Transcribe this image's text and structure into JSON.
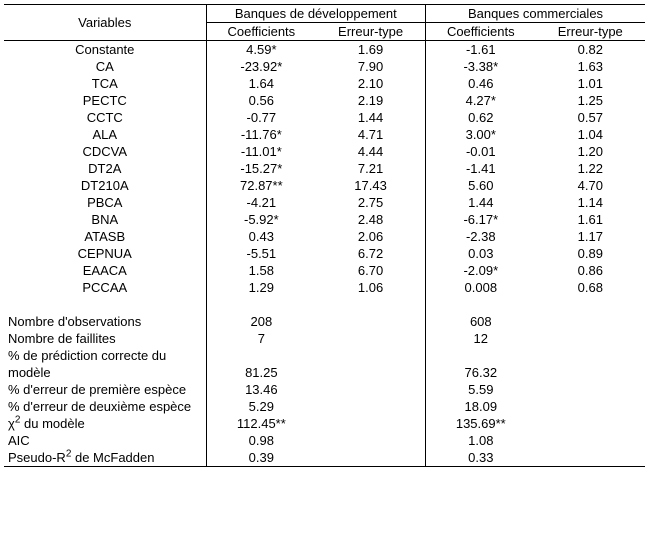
{
  "headers": {
    "variables": "Variables",
    "group_dev": "Banques de développement",
    "group_com": "Banques commerciales",
    "coefficients": "Coefficients",
    "erreur_type": "Erreur-type"
  },
  "rows": [
    {
      "label": "Constante",
      "dev_coef": "4.59*",
      "dev_err": "1.69",
      "com_coef": "-1.61",
      "com_err": "0.82"
    },
    {
      "label": "CA",
      "dev_coef": "-23.92*",
      "dev_err": "7.90",
      "com_coef": "-3.38*",
      "com_err": "1.63"
    },
    {
      "label": "TCA",
      "dev_coef": "1.64",
      "dev_err": "2.10",
      "com_coef": "0.46",
      "com_err": "1.01"
    },
    {
      "label": "PECTC",
      "dev_coef": "0.56",
      "dev_err": "2.19",
      "com_coef": "4.27*",
      "com_err": "1.25"
    },
    {
      "label": "CCTC",
      "dev_coef": "-0.77",
      "dev_err": "1.44",
      "com_coef": "0.62",
      "com_err": "0.57"
    },
    {
      "label": "ALA",
      "dev_coef": "-11.76*",
      "dev_err": "4.71",
      "com_coef": "3.00*",
      "com_err": "1.04"
    },
    {
      "label": "CDCVA",
      "dev_coef": "-11.01*",
      "dev_err": "4.44",
      "com_coef": "-0.01",
      "com_err": "1.20"
    },
    {
      "label": "DT2A",
      "dev_coef": "-15.27*",
      "dev_err": "7.21",
      "com_coef": "-1.41",
      "com_err": "1.22"
    },
    {
      "label": "DT210A",
      "dev_coef": "72.87**",
      "dev_err": "17.43",
      "com_coef": "5.60",
      "com_err": "4.70"
    },
    {
      "label": "PBCA",
      "dev_coef": "-4.21",
      "dev_err": "2.75",
      "com_coef": "1.44",
      "com_err": "1.14"
    },
    {
      "label": "BNA",
      "dev_coef": "-5.92*",
      "dev_err": "2.48",
      "com_coef": "-6.17*",
      "com_err": "1.61"
    },
    {
      "label": "ATASB",
      "dev_coef": "0.43",
      "dev_err": "2.06",
      "com_coef": "-2.38",
      "com_err": "1.17"
    },
    {
      "label": "CEPNUA",
      "dev_coef": "-5.51",
      "dev_err": "6.72",
      "com_coef": "0.03",
      "com_err": "0.89"
    },
    {
      "label": "EAACA",
      "dev_coef": "1.58",
      "dev_err": "6.70",
      "com_coef": "-2.09*",
      "com_err": "0.86"
    },
    {
      "label": "PCCAA",
      "dev_coef": "1.29",
      "dev_err": "1.06",
      "com_coef": "0.008",
      "com_err": "0.68"
    }
  ],
  "stats": [
    {
      "label": "Nombre d'observations",
      "dev": "208",
      "com": "608"
    },
    {
      "label": "Nombre de faillites",
      "dev": "7",
      "com": "12"
    },
    {
      "label": "% de prédiction correcte du modèle",
      "dev": "81.25",
      "com": "76.32",
      "wrap": true
    },
    {
      "label": "% d'erreur de première espèce",
      "dev": "13.46",
      "com": "5.59"
    },
    {
      "label": "% d'erreur de deuxième espèce",
      "dev": "5.29",
      "com": "18.09"
    },
    {
      "label_html": "chi2_model",
      "dev": "112.45**",
      "com": "135.69**"
    },
    {
      "label": "AIC",
      "dev": "0.98",
      "com": "1.08"
    },
    {
      "label_html": "pseudo_r2",
      "dev": "0.39",
      "com": "0.33"
    }
  ],
  "special_labels": {
    "chi2_model_prefix": "χ",
    "chi2_model_sup": "2",
    "chi2_model_suffix": " du modèle",
    "pseudo_r2_prefix": "Pseudo-R",
    "pseudo_r2_sup": "2",
    "pseudo_r2_suffix": " de McFadden",
    "pct_pred_line1": "% de prédiction correcte du",
    "pct_pred_line2": "modèle"
  },
  "style": {
    "font_family": "Arial, Helvetica, sans-serif",
    "font_size_pt": 10,
    "text_color": "#000000",
    "background_color": "#ffffff",
    "border_color": "#000000"
  }
}
